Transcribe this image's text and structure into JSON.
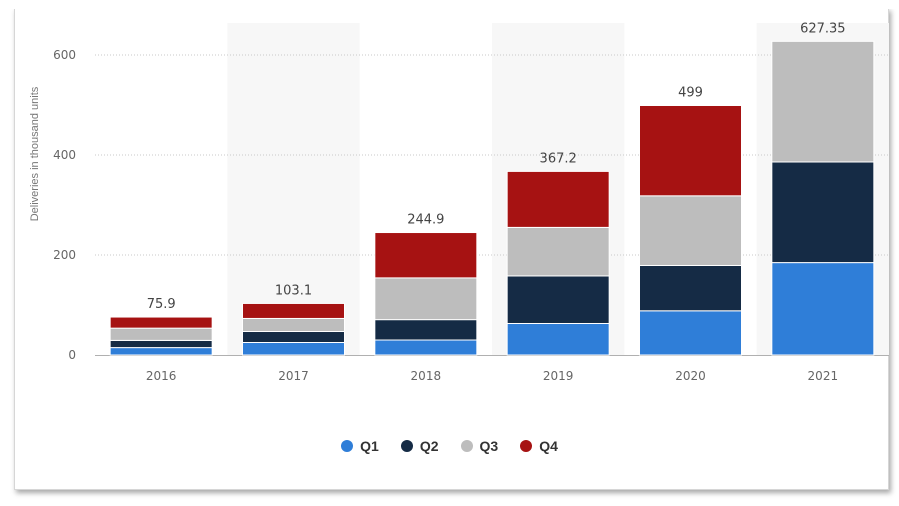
{
  "chart_data": {
    "type": "bar",
    "stacked": true,
    "categories": [
      "2016",
      "2017",
      "2018",
      "2019",
      "2020",
      "2021"
    ],
    "series": [
      {
        "name": "Q1",
        "color": "#2f7ed8",
        "values": [
          14.8,
          25.0,
          29.98,
          63.0,
          88.4,
          184.8
        ]
      },
      {
        "name": "Q2",
        "color": "#152b45",
        "values": [
          14.4,
          22.0,
          40.74,
          95.2,
          90.65,
          201.25
        ]
      },
      {
        "name": "Q3",
        "color": "#bdbdbd",
        "values": [
          24.5,
          26.1,
          83.5,
          97.0,
          139.3,
          241.3
        ]
      },
      {
        "name": "Q4",
        "color": "#a61212",
        "values": [
          22.2,
          30.0,
          90.7,
          112.0,
          180.65,
          0
        ]
      }
    ],
    "totals": [
      "75.9",
      "103.1",
      "244.9",
      "367.2",
      "499",
      "627.35"
    ],
    "ylabel": "Deliveries in thousand units",
    "xlabel": "",
    "ylim": [
      0,
      650
    ],
    "yticks": [
      0,
      200,
      400,
      600
    ],
    "grid": true,
    "legend_position": "bottom"
  }
}
